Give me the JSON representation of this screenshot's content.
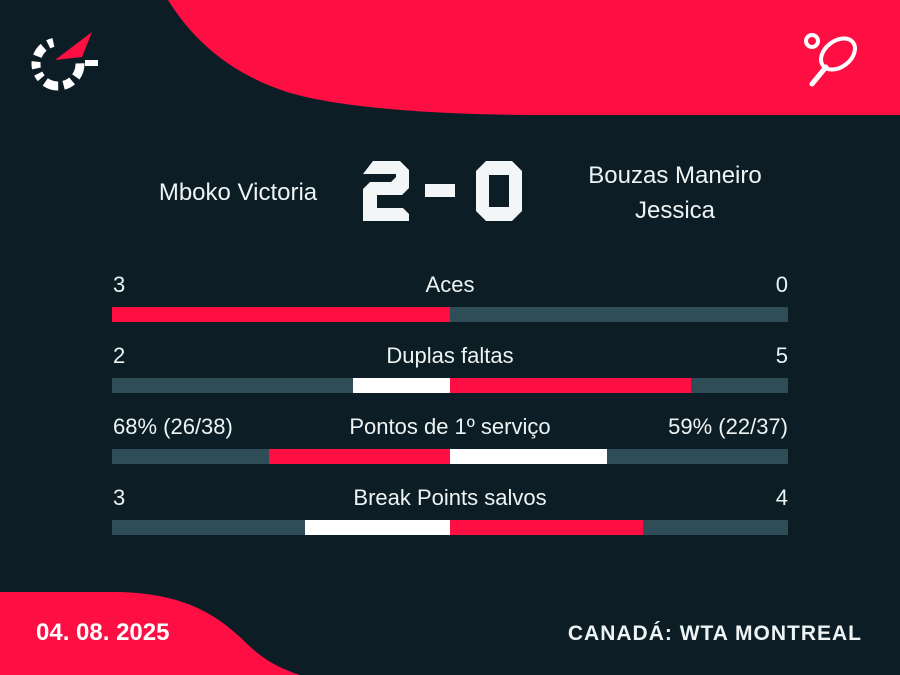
{
  "colors": {
    "background": "#0c1d25",
    "accent_red": "#fd0e43",
    "bar_track": "#2f4d57",
    "bar_loser_fill": "#ffffff",
    "text": "#eef3f3"
  },
  "header": {
    "logo": "flashscore-logo",
    "sport_icon": "tennis-racket-icon"
  },
  "scoreboard": {
    "home_name": "Mboko Victoria",
    "away_name": "Bouzas Maneiro Jessica",
    "home_score": "2",
    "separator": "-",
    "away_score": "0"
  },
  "stats": {
    "rows": [
      {
        "label": "Aces",
        "home_value": "3",
        "away_value": "0",
        "home_fill_pct_of_half": 100,
        "away_fill_pct_of_half": 0,
        "home_color": "#fd0e43",
        "away_color": "#ffffff"
      },
      {
        "label": "Duplas faltas",
        "home_value": "2",
        "away_value": "5",
        "home_fill_pct_of_half": 28.6,
        "away_fill_pct_of_half": 71.4,
        "home_color": "#ffffff",
        "away_color": "#fd0e43"
      },
      {
        "label": "Pontos de 1º serviço",
        "home_value": "68% (26/38)",
        "away_value": "59% (22/37)",
        "home_fill_pct_of_half": 53.5,
        "away_fill_pct_of_half": 46.5,
        "home_color": "#fd0e43",
        "away_color": "#ffffff"
      },
      {
        "label": "Break Points salvos",
        "home_value": "3",
        "away_value": "4",
        "home_fill_pct_of_half": 42.9,
        "away_fill_pct_of_half": 57.1,
        "home_color": "#ffffff",
        "away_color": "#fd0e43"
      }
    ]
  },
  "footer": {
    "date": "04. 08. 2025",
    "tournament": "CANADÁ: WTA MONTREAL"
  },
  "chart_data": {
    "type": "bar",
    "title": "Mboko Victoria 2 - 0 Bouzas Maneiro Jessica",
    "layout": "diverging-from-center, per-row pair of horizontal bars, fill length = value / (home+away) of half width",
    "categories": [
      "Aces",
      "Duplas faltas",
      "Pontos de 1º serviço",
      "Break Points salvos"
    ],
    "series": [
      {
        "name": "Mboko Victoria",
        "values": [
          3,
          2,
          68,
          3
        ],
        "value_labels": [
          "3",
          "2",
          "68% (26/38)",
          "3"
        ]
      },
      {
        "name": "Bouzas Maneiro Jessica",
        "values": [
          0,
          5,
          59,
          4
        ],
        "value_labels": [
          "0",
          "5",
          "59% (22/37)",
          "4"
        ]
      }
    ],
    "winner_fill_color": "#fd0e43",
    "loser_fill_color": "#ffffff",
    "track_color": "#2f4d57"
  }
}
